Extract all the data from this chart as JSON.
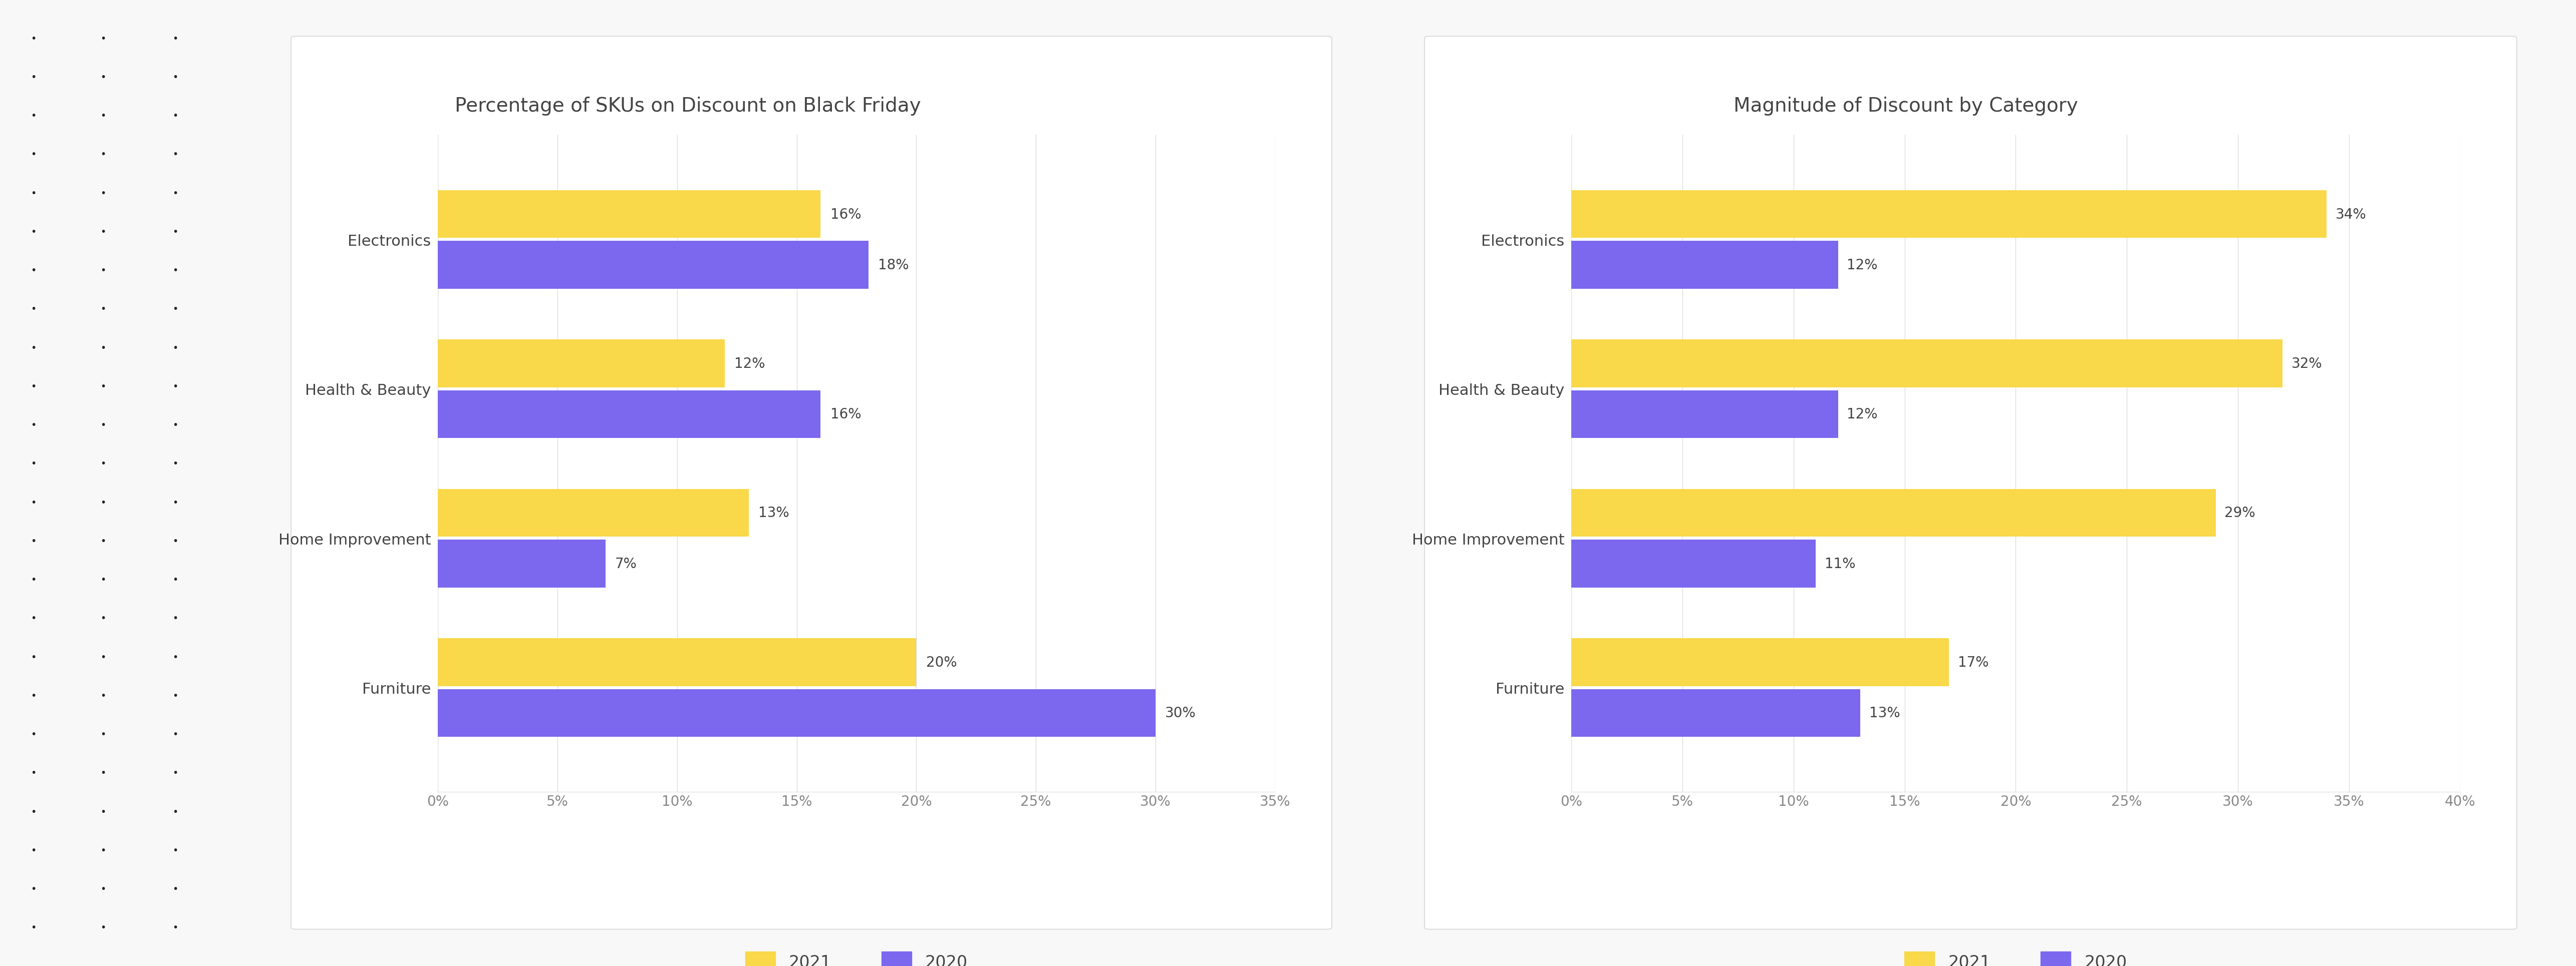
{
  "chart1": {
    "title": "Percentage of SKUs on Discount on Black Friday",
    "categories": [
      "Furniture",
      "Home Improvement",
      "Health & Beauty",
      "Electronics"
    ],
    "values_2021": [
      20,
      13,
      12,
      16
    ],
    "values_2020": [
      30,
      7,
      16,
      18
    ],
    "xlim": [
      0,
      35
    ],
    "xticks": [
      0,
      5,
      10,
      15,
      20,
      25,
      30,
      35
    ],
    "xtick_labels": [
      "0%",
      "5%",
      "10%",
      "15%",
      "20%",
      "25%",
      "30%",
      "35%"
    ]
  },
  "chart2": {
    "title": "Magnitude of Discount by Category",
    "categories": [
      "Furniture",
      "Home Improvement",
      "Health & Beauty",
      "Electronics"
    ],
    "values_2021": [
      17,
      29,
      32,
      34
    ],
    "values_2020": [
      13,
      11,
      12,
      12
    ],
    "xlim": [
      0,
      40
    ],
    "xticks": [
      0,
      5,
      10,
      15,
      20,
      25,
      30,
      35,
      40
    ],
    "xtick_labels": [
      "0%",
      "5%",
      "10%",
      "15%",
      "20%",
      "25%",
      "30%",
      "35%",
      "40%"
    ]
  },
  "color_2021": "#F9D849",
  "color_2020": "#7B68EE",
  "bar_height": 0.32,
  "panel_background": "#FFFFFF",
  "grid_color": "#DDDDDD",
  "title_fontsize": 28,
  "label_fontsize": 22,
  "tick_fontsize": 20,
  "annotation_fontsize": 20,
  "legend_fontsize": 24,
  "outer_bg": "#F8F8F8",
  "panel_edge_color": "#DDDDDD",
  "text_color": "#444444",
  "dot_color": "#222222"
}
